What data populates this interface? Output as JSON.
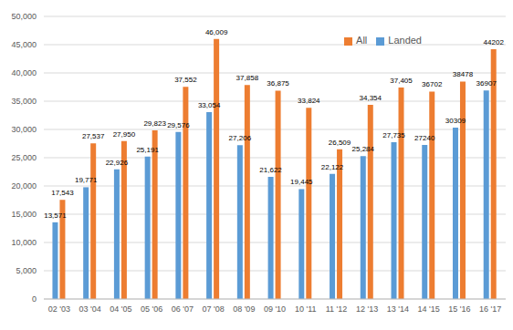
{
  "chart_data": {
    "type": "bar",
    "categories": [
      "02 '03",
      "03 '04",
      "04 '05",
      "05 '06",
      "06 '07",
      "07 '08",
      "08 '09",
      "09 '10",
      "10 '11",
      "11 '12",
      "12 '13",
      "13 '14",
      "14 '15",
      "15 '16",
      "16 '17"
    ],
    "series": [
      {
        "name": "Landed",
        "color": "#5B9BD5",
        "values": [
          13571,
          19771,
          22926,
          25191,
          29576,
          33054,
          27206,
          21622,
          19445,
          22122,
          25284,
          27735,
          27240,
          30309,
          36907
        ],
        "value_labels": [
          "13,571",
          "19,771",
          "22,926",
          "25,191",
          "29,576",
          "33,054",
          "27,206",
          "21,622",
          "19,445",
          "22,122",
          "25,284",
          "27,735",
          "27240",
          "30309",
          "36907"
        ]
      },
      {
        "name": "All",
        "color": "#ED7D31",
        "values": [
          17543,
          27537,
          27950,
          29823,
          37552,
          46009,
          37858,
          36875,
          33824,
          26509,
          34354,
          37405,
          36702,
          38478,
          44202
        ],
        "value_labels": [
          "17,543",
          "27,537",
          "27,950",
          "29,823",
          "37,552",
          "46,009",
          "37,858",
          "36,875",
          "33,824",
          "26,509",
          "34,354",
          "37,405",
          "36702",
          "38478",
          "44202"
        ]
      }
    ],
    "ylim": [
      0,
      50000
    ],
    "yticks": [
      0,
      {
        "value": 5000,
        "label": "5,000"
      },
      {
        "value": 10000,
        "label": "10,000"
      },
      {
        "value": 15000,
        "label": "15,000"
      },
      {
        "value": 20000,
        "label": "20,000"
      },
      {
        "value": 25000,
        "label": "25,000"
      },
      {
        "value": 30000,
        "label": "30,000"
      },
      {
        "value": 35000,
        "label": "35,000"
      },
      {
        "value": 40000,
        "label": "40,000"
      },
      {
        "value": 45000,
        "label": "45,000"
      },
      {
        "value": 50000,
        "label": "50,000"
      }
    ],
    "grid": true,
    "legend": "top-right",
    "data_labels": true
  }
}
